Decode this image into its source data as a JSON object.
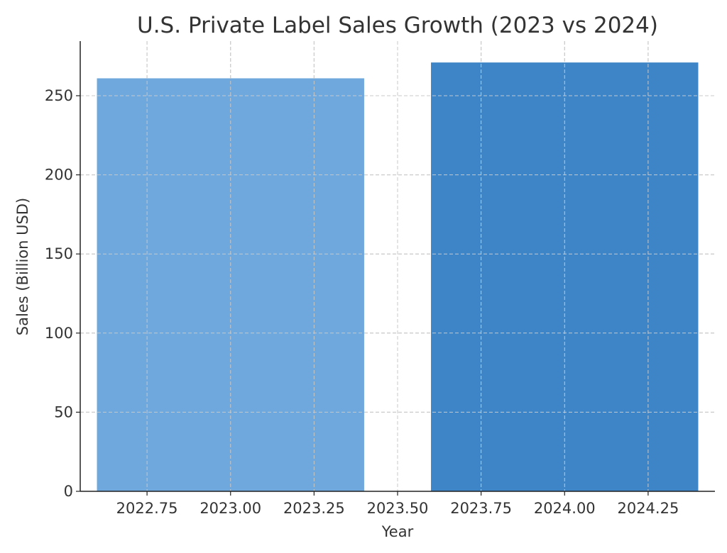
{
  "chart_data": {
    "type": "bar",
    "title": "U.S. Private Label Sales Growth (2023 vs 2024)",
    "xlabel": "Year",
    "ylabel": "Sales (Billion USD)",
    "x": [
      2023,
      2024
    ],
    "values": [
      261,
      271
    ],
    "bar_width": 0.8,
    "colors": [
      "#6fa8dc",
      "#3d85c6"
    ],
    "xlim": [
      2022.55,
      2024.45
    ],
    "ylim": [
      0,
      284.5
    ],
    "xticks": [
      2022.75,
      2023.0,
      2023.25,
      2023.5,
      2023.75,
      2024.0,
      2024.25
    ],
    "xtick_labels": [
      "2022.75",
      "2023.00",
      "2023.25",
      "2023.50",
      "2023.75",
      "2024.00",
      "2024.25"
    ],
    "yticks": [
      0,
      50,
      100,
      150,
      200,
      250
    ],
    "ytick_labels": [
      "0",
      "50",
      "100",
      "150",
      "200",
      "250"
    ],
    "grid": true
  }
}
